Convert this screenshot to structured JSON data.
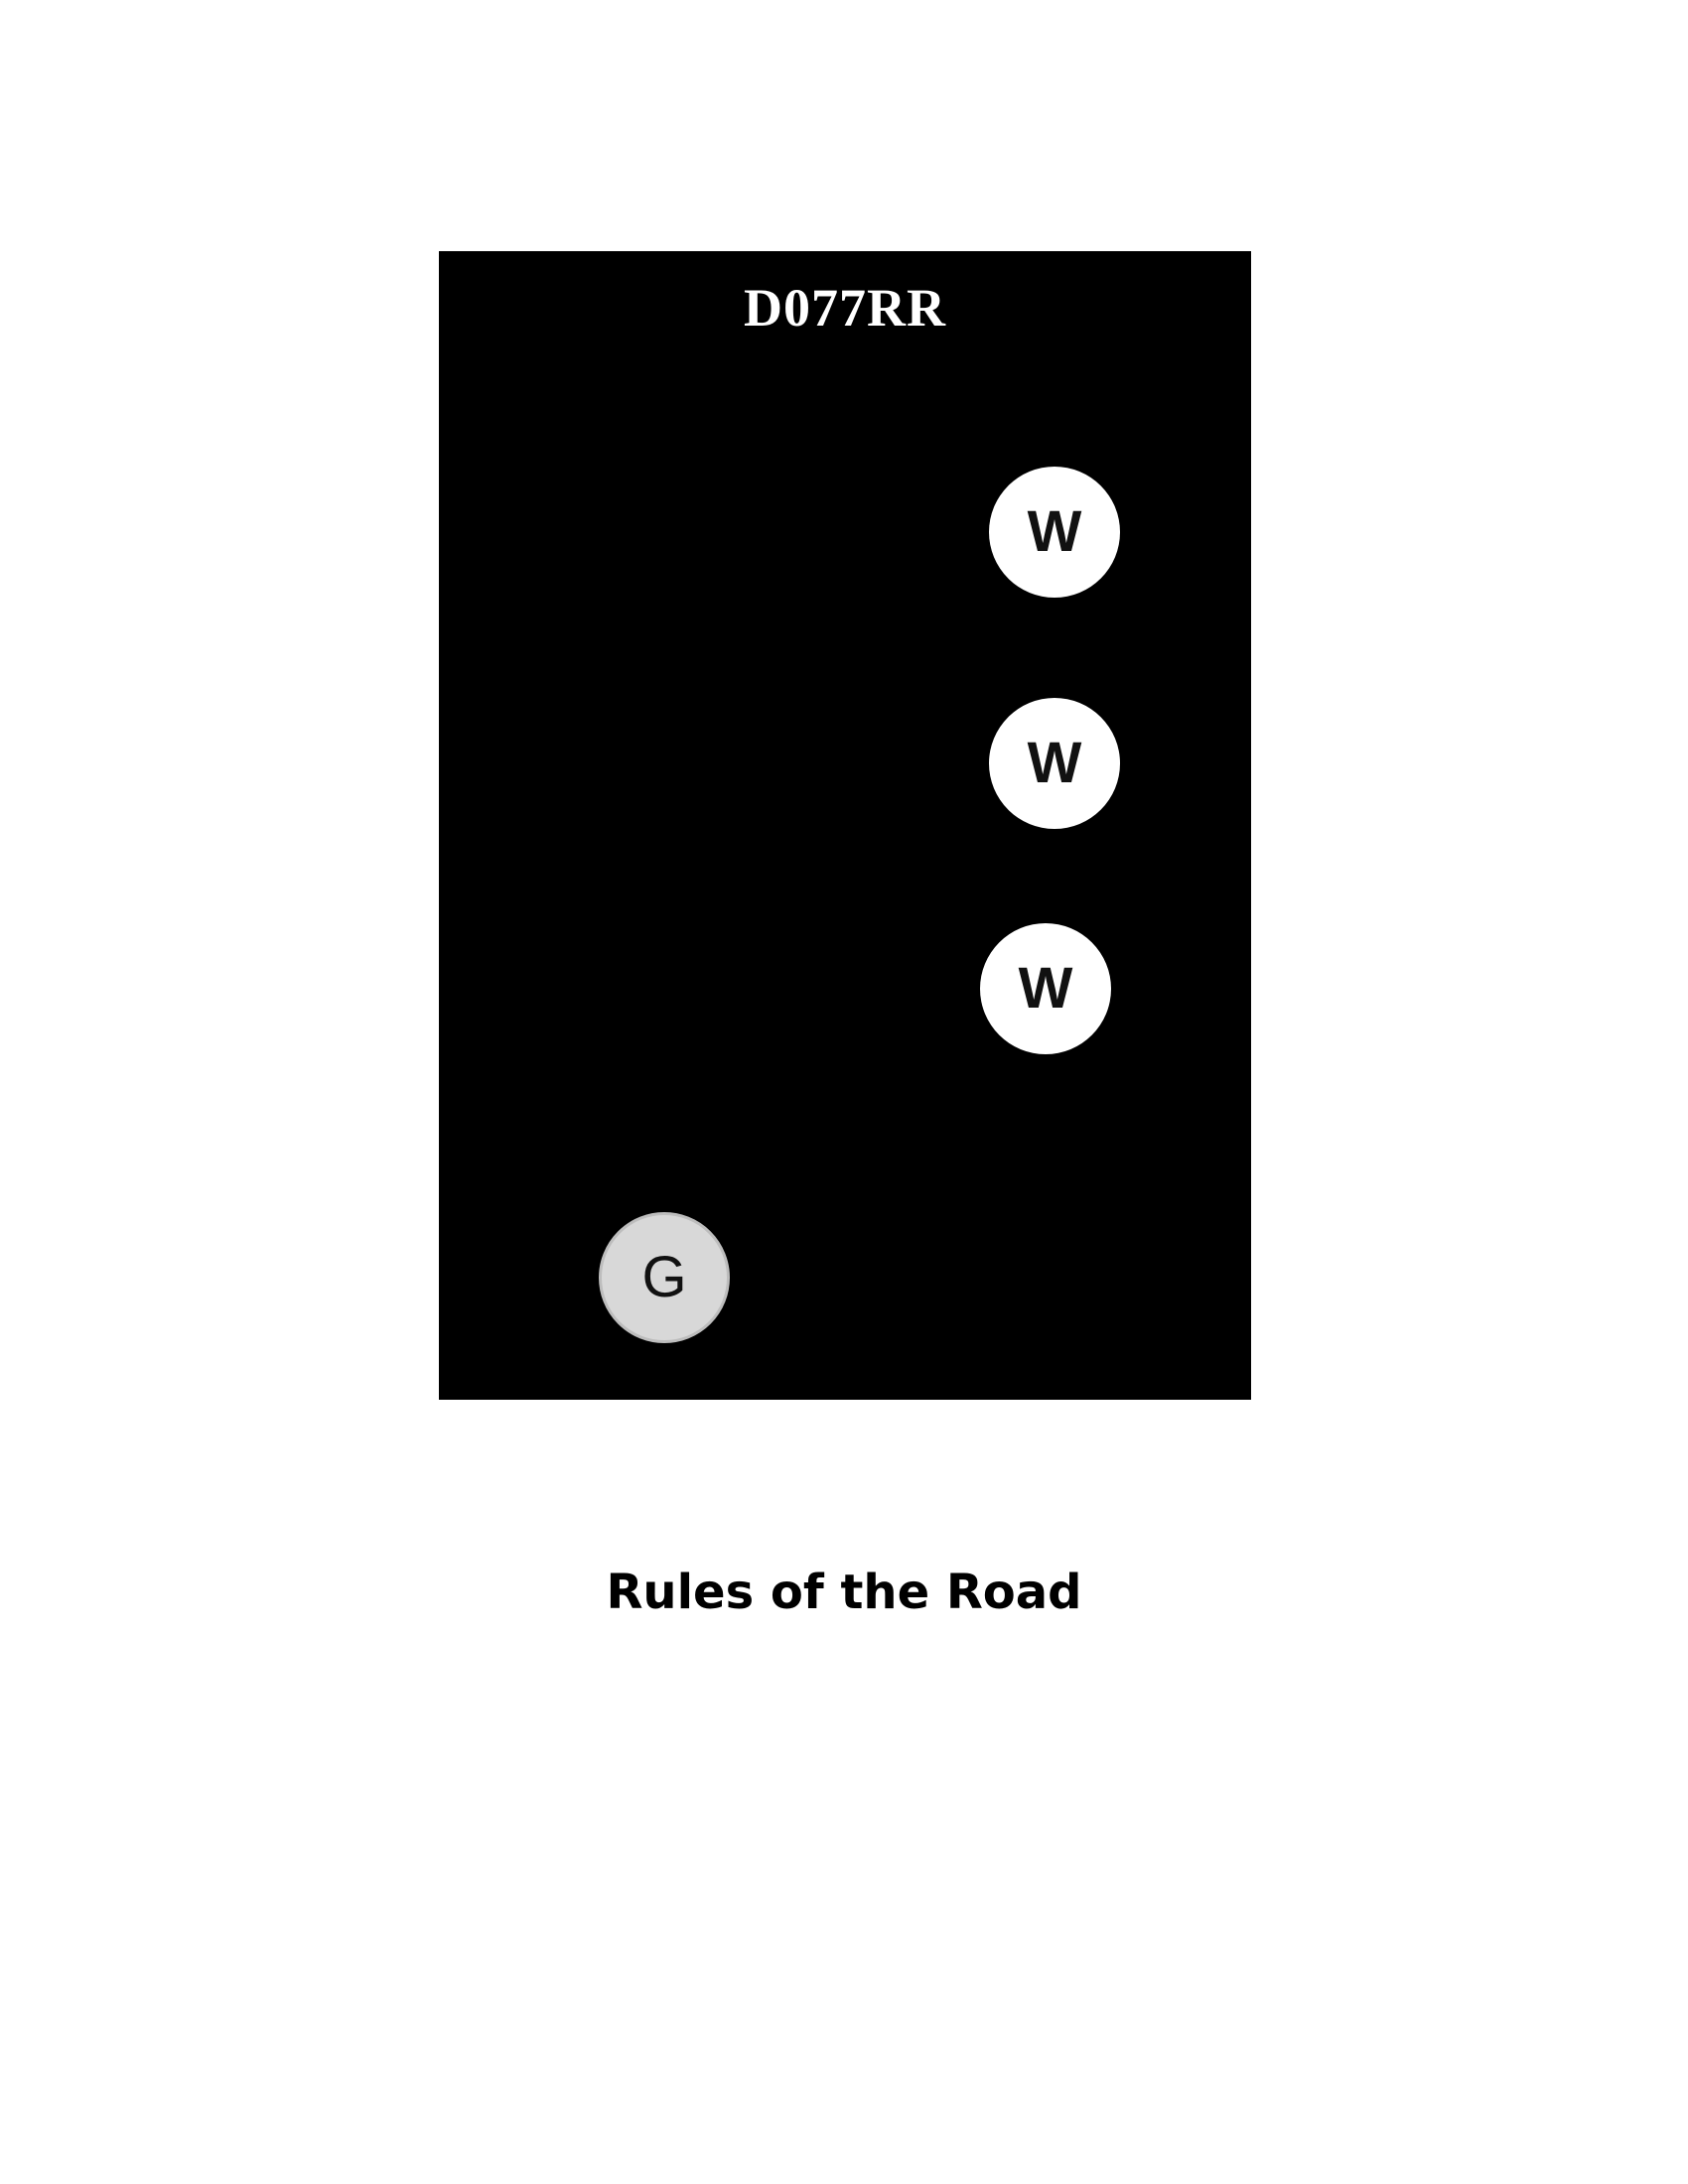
{
  "figure": {
    "code": "D077RR",
    "background_color": "#000000",
    "lights": [
      {
        "letter": "W",
        "color": "#ffffff"
      },
      {
        "letter": "W",
        "color": "#ffffff"
      },
      {
        "letter": "W",
        "color": "#ffffff"
      },
      {
        "letter": "G",
        "color": "#d8d8d8"
      }
    ]
  },
  "caption": "Rules of the Road"
}
